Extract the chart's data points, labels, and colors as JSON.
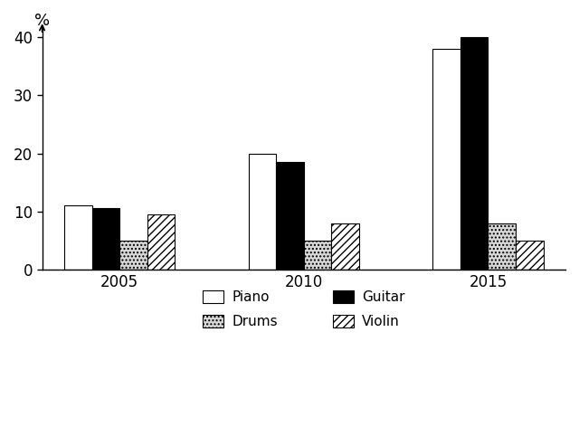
{
  "years": [
    "2005",
    "2010",
    "2015"
  ],
  "instruments": [
    "Piano",
    "Guitar",
    "Drums",
    "Violin"
  ],
  "values": {
    "Piano": [
      11,
      20,
      38
    ],
    "Guitar": [
      10.5,
      18.5,
      40
    ],
    "Drums": [
      5,
      5,
      8
    ],
    "Violin": [
      9.5,
      8,
      5
    ]
  },
  "bar_styles": {
    "Piano": {
      "facecolor": "#ffffff",
      "edgecolor": "#000000",
      "hatch": null
    },
    "Guitar": {
      "facecolor": "#000000",
      "edgecolor": "#000000",
      "hatch": null
    },
    "Drums": {
      "facecolor": "#d8d8d8",
      "edgecolor": "#000000",
      "hatch": "...."
    },
    "Violin": {
      "facecolor": "#ffffff",
      "edgecolor": "#000000",
      "hatch": "////"
    }
  },
  "percent_label": "%",
  "ylim": [
    0,
    42
  ],
  "yticks": [
    0,
    10,
    20,
    30,
    40
  ],
  "bar_width": 0.15,
  "background_color": "#ffffff",
  "legend_order": [
    "Piano",
    "Drums",
    "Guitar",
    "Violin"
  ],
  "legend_ncols": 2
}
